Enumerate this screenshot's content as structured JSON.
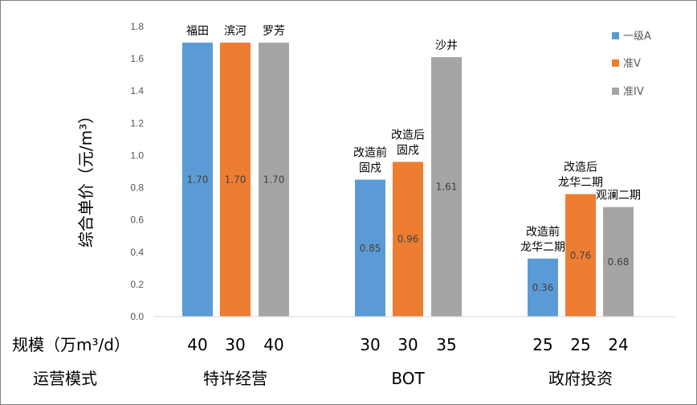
{
  "chart_data": {
    "type": "bar",
    "ylabel": "综合单价（元/m³）",
    "ylim": [
      0,
      1.8
    ],
    "yticks": [
      "0.0",
      "0.2",
      "0.4",
      "0.6",
      "0.8",
      "1.0",
      "1.2",
      "1.4",
      "1.6",
      "1.8"
    ],
    "grid": false,
    "legend_position": "top-right",
    "series_colors": {
      "一级A": "#5b9bd5",
      "准V": "#ed7d31",
      "准IV": "#a5a5a5"
    },
    "legend": [
      {
        "name": "一级A",
        "color": "#5b9bd5"
      },
      {
        "name": "准V",
        "color": "#ed7d31"
      },
      {
        "name": "准IV",
        "color": "#a5a5a5"
      }
    ],
    "groups": [
      {
        "mode": "特许经营",
        "bars": [
          {
            "series": "一级A",
            "value": 1.7,
            "value_label": "1.70",
            "annotation": [
              "福田"
            ],
            "scale": "40"
          },
          {
            "series": "准V",
            "value": 1.7,
            "value_label": "1.70",
            "annotation": [
              "滨河"
            ],
            "scale": "30"
          },
          {
            "series": "准IV",
            "value": 1.7,
            "value_label": "1.70",
            "annotation": [
              "罗芳"
            ],
            "scale": "40"
          }
        ]
      },
      {
        "mode": "BOT",
        "bars": [
          {
            "series": "一级A",
            "value": 0.85,
            "value_label": "0.85",
            "annotation": [
              "改造前",
              "固戍"
            ],
            "scale": "30"
          },
          {
            "series": "准V",
            "value": 0.96,
            "value_label": "0.96",
            "annotation": [
              "改造后",
              "固戍"
            ],
            "scale": "30"
          },
          {
            "series": "准IV",
            "value": 1.61,
            "value_label": "1.61",
            "annotation": [
              "沙井"
            ],
            "scale": "35"
          }
        ]
      },
      {
        "mode": "政府投资",
        "bars": [
          {
            "series": "一级A",
            "value": 0.36,
            "value_label": "0.36",
            "annotation": [
              "改造前",
              "龙华二期"
            ],
            "scale": "25"
          },
          {
            "series": "准V",
            "value": 0.76,
            "value_label": "0.76",
            "annotation": [
              "改造后",
              "龙华二期"
            ],
            "scale": "25"
          },
          {
            "series": "准IV",
            "value": 0.68,
            "value_label": "0.68",
            "annotation": [
              "观澜二期"
            ],
            "scale": "24"
          }
        ]
      }
    ],
    "scale_row_label": "规模（万m³/d）",
    "mode_row_label": "运营模式"
  }
}
